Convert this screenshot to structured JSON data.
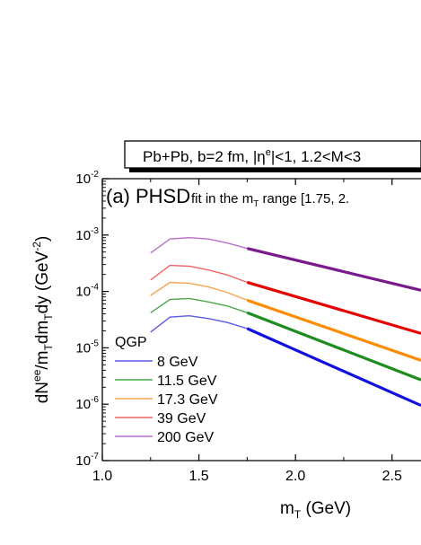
{
  "chart_data": {
    "type": "line",
    "title_box": "Pb+Pb, b=2 fm, |η",
    "title_box_sup": "e",
    "title_box_rest": "|<1, 1.2<M<3",
    "panel_label": "(a) PHSD",
    "fit_note_prefix": "fit in the m",
    "fit_note_sub": "T",
    "fit_note_rest": " range [1.75, 2.",
    "xlabel_main": "m",
    "xlabel_sub": "T",
    "xlabel_rest": " (GeV)",
    "ylabel_a": "dN",
    "ylabel_sup1": "ee",
    "ylabel_b": "/m",
    "ylabel_sub1": "T",
    "ylabel_c": "dm",
    "ylabel_sub2": "T",
    "ylabel_d": "dy (GeV",
    "ylabel_sup2": "-2",
    "ylabel_e": ")",
    "xlim": [
      1.0,
      2.65
    ],
    "y_log": true,
    "ylim_exp": [
      -7,
      -2
    ],
    "xticks": [
      "1.0",
      "1.5",
      "2.0",
      "2.5"
    ],
    "xtick_values": [
      1.0,
      1.5,
      2.0,
      2.5
    ],
    "yticks": [
      {
        "base": "10",
        "exp": "-2",
        "value": -2
      },
      {
        "base": "10",
        "exp": "-3",
        "value": -3
      },
      {
        "base": "10",
        "exp": "-4",
        "value": -4
      },
      {
        "base": "10",
        "exp": "-5",
        "value": -5
      },
      {
        "base": "10",
        "exp": "-6",
        "value": -6
      },
      {
        "base": "10",
        "exp": "-7",
        "value": -7
      }
    ],
    "legend_title": "QGP",
    "legend_placement": "bottom-left",
    "series": [
      {
        "name": "8 GeV",
        "color": "#5a5ae6",
        "fit_color": "#1010e0",
        "points": [
          [
            1.25,
            1.9e-05
          ],
          [
            1.35,
            3.5e-05
          ],
          [
            1.45,
            3.7e-05
          ],
          [
            1.55,
            3.3e-05
          ],
          [
            1.65,
            2.8e-05
          ],
          [
            1.75,
            2.2e-05
          ]
        ],
        "fit": [
          [
            1.75,
            2.2e-05
          ],
          [
            2.65,
            9.5e-07
          ]
        ]
      },
      {
        "name": "11.5 GeV",
        "color": "#4aa84a",
        "fit_color": "#1e8c1e",
        "points": [
          [
            1.25,
            4.2e-05
          ],
          [
            1.35,
            7.2e-05
          ],
          [
            1.45,
            7.5e-05
          ],
          [
            1.55,
            6.5e-05
          ],
          [
            1.65,
            5.5e-05
          ],
          [
            1.75,
            4.2e-05
          ]
        ],
        "fit": [
          [
            1.75,
            4.2e-05
          ],
          [
            2.65,
            2.7e-06
          ]
        ]
      },
      {
        "name": "17.3 GeV",
        "color": "#f5a550",
        "fit_color": "#ff8c00",
        "points": [
          [
            1.25,
            8.5e-05
          ],
          [
            1.35,
            0.000145
          ],
          [
            1.45,
            0.00014
          ],
          [
            1.55,
            0.00012
          ],
          [
            1.65,
            9.5e-05
          ],
          [
            1.75,
            7e-05
          ]
        ],
        "fit": [
          [
            1.75,
            7e-05
          ],
          [
            2.65,
            6e-06
          ]
        ]
      },
      {
        "name": "39 GeV",
        "color": "#f06464",
        "fit_color": "#e60000",
        "points": [
          [
            1.25,
            0.00016
          ],
          [
            1.35,
            0.00029
          ],
          [
            1.45,
            0.00028
          ],
          [
            1.55,
            0.00024
          ],
          [
            1.65,
            0.000195
          ],
          [
            1.75,
            0.000145
          ]
        ],
        "fit": [
          [
            1.75,
            0.000145
          ],
          [
            2.65,
            1.8e-05
          ]
        ]
      },
      {
        "name": "200 GeV",
        "color": "#b870c8",
        "fit_color": "#7a1a8c",
        "points": [
          [
            1.25,
            0.00048
          ],
          [
            1.35,
            0.00085
          ],
          [
            1.45,
            0.0009
          ],
          [
            1.55,
            0.00085
          ],
          [
            1.65,
            0.00072
          ],
          [
            1.75,
            0.00058
          ]
        ],
        "fit": [
          [
            1.75,
            0.00058
          ],
          [
            2.65,
            0.000105
          ]
        ]
      }
    ]
  }
}
